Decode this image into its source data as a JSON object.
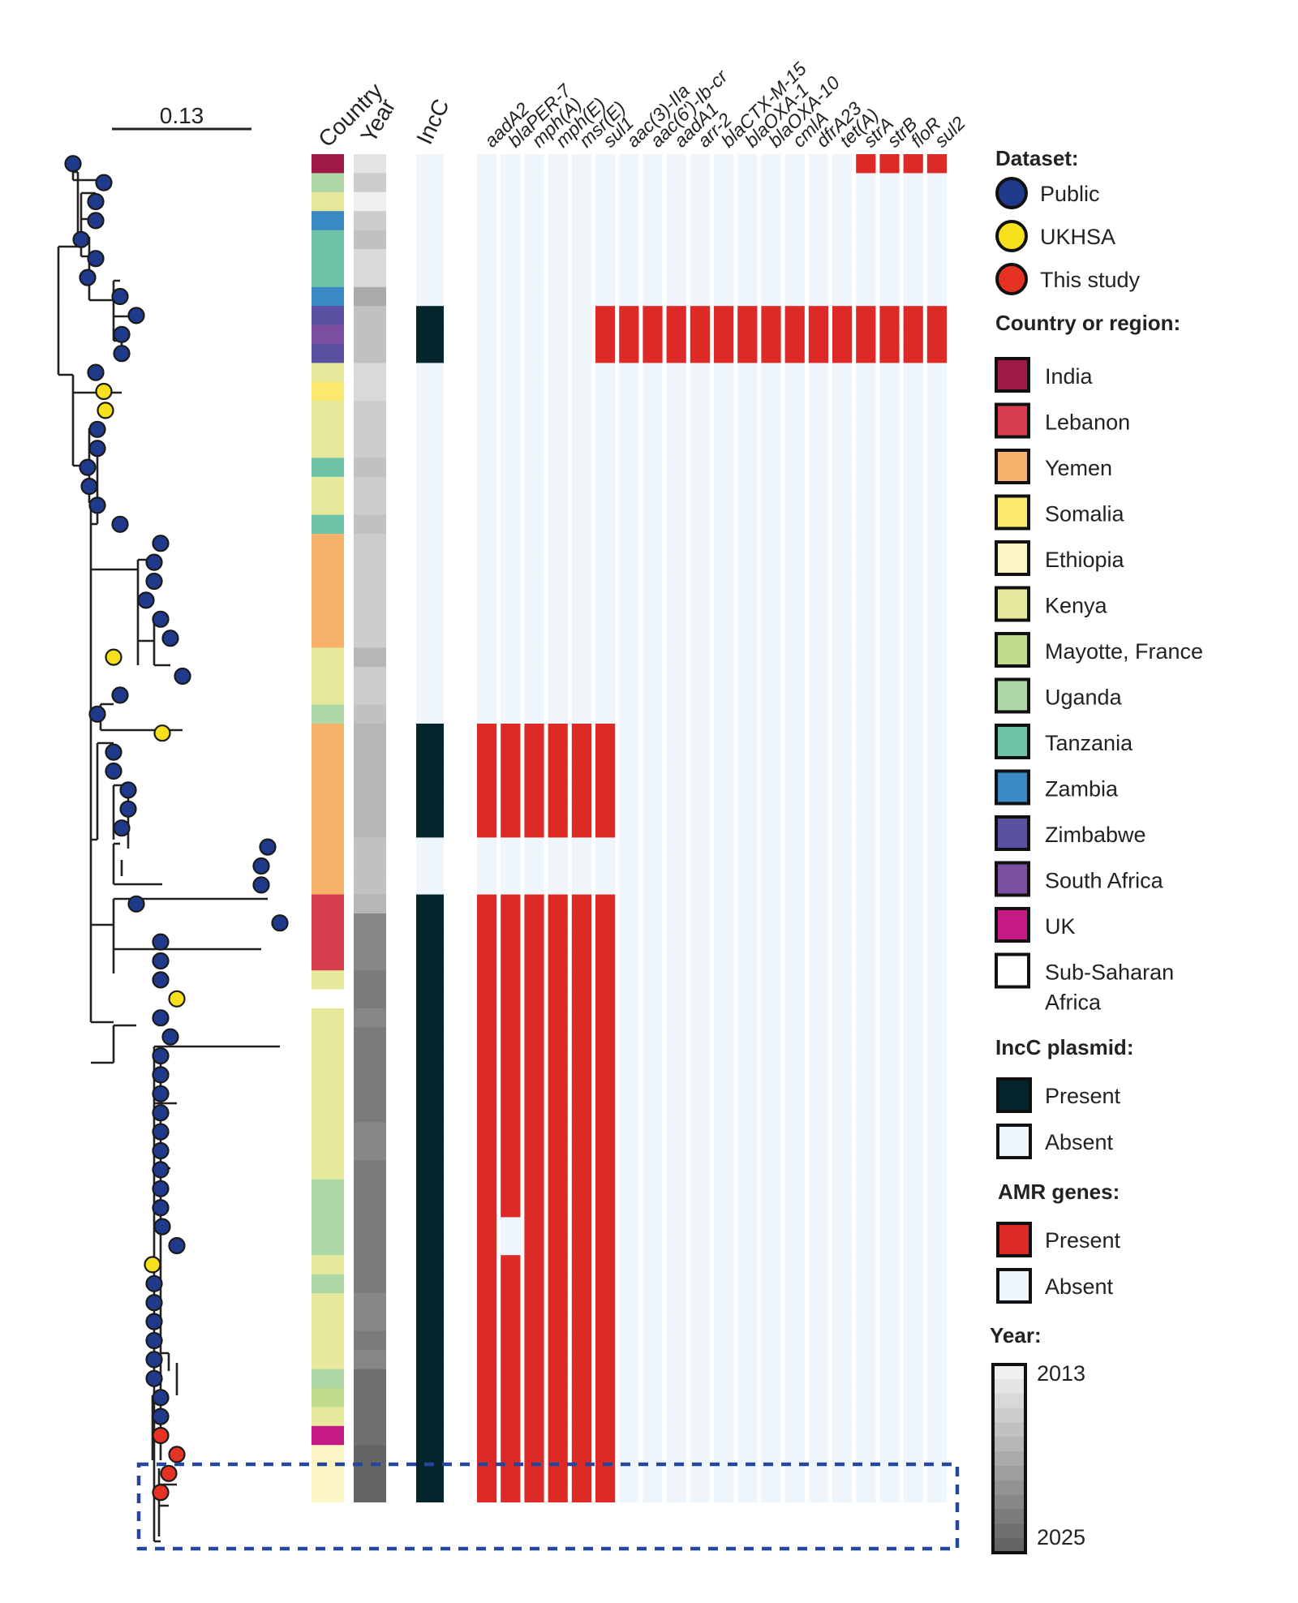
{
  "scale_bar": {
    "label": "0.13"
  },
  "columns": {
    "country": "Country",
    "year": "Year",
    "incc": "IncC",
    "genes": [
      "aadA2",
      "blaPER-7",
      "mph(A)",
      "mph(E)",
      "msr(E)",
      "sul1",
      "aac(3)-IIa",
      "aac(6')-Ib-cr",
      "aadA1",
      "arr-2",
      "blaCTX-M-15",
      "blaOXA-1",
      "blaOXA-10",
      "cmlA",
      "dfrA23",
      "tet(A)",
      "strA",
      "strB",
      "floR",
      "sul2"
    ]
  },
  "colors": {
    "public": "#1f3a8a",
    "ukhsa": "#f7e11d",
    "this_study": "#e53223",
    "present_amr": "#dd2a27",
    "absent": "#eef6fb",
    "incc_present": "#04252b",
    "highlight_box": "#25469b"
  },
  "legend": {
    "dataset": {
      "title": "Dataset:",
      "items": [
        {
          "label": "Public",
          "color": "#1f3a8a"
        },
        {
          "label": "UKHSA",
          "color": "#f7e11d"
        },
        {
          "label": "This study",
          "color": "#e53223"
        }
      ]
    },
    "country": {
      "title": "Country or region:",
      "items": [
        {
          "label": "India",
          "color": "#9e1848"
        },
        {
          "label": "Lebanon",
          "color": "#d93e4f"
        },
        {
          "label": "Yemen",
          "color": "#f8b168"
        },
        {
          "label": "Somalia",
          "color": "#fbe96f"
        },
        {
          "label": "Ethiopia",
          "color": "#fcf6c4"
        },
        {
          "label": "Kenya",
          "color": "#e6e89b"
        },
        {
          "label": "Mayotte, France",
          "color": "#bfdb8c"
        },
        {
          "label": "Uganda",
          "color": "#add7a5"
        },
        {
          "label": "Tanzania",
          "color": "#6cc3a6"
        },
        {
          "label": "Zambia",
          "color": "#3a89c4"
        },
        {
          "label": "Zimbabwe",
          "color": "#5b51a1"
        },
        {
          "label": "South Africa",
          "color": "#7c4e9f"
        },
        {
          "label": "UK",
          "color": "#c51a83"
        },
        {
          "label": "Sub-Saharan",
          "label2": "Africa",
          "color": "#ffffff"
        }
      ]
    },
    "incc": {
      "title": "IncC plasmid:",
      "items": [
        {
          "label": "Present",
          "color": "#04252b"
        },
        {
          "label": "Absent",
          "color": "#eef6fb"
        }
      ]
    },
    "amr": {
      "title": "AMR genes:",
      "items": [
        {
          "label": "Present",
          "color": "#dd2a27"
        },
        {
          "label": "Absent",
          "color": "#eef6fb"
        }
      ]
    },
    "year": {
      "title": "Year:",
      "min": "2013",
      "max": "2025"
    }
  },
  "tips": [
    {
      "dataset": "Public",
      "country": "India",
      "year": 2014,
      "incc": false,
      "amr": "strA,strB,floR,sul2"
    },
    {
      "dataset": "Public",
      "country": "Uganda",
      "year": 2016,
      "incc": false,
      "amr": ""
    },
    {
      "dataset": "Public",
      "country": "Kenya",
      "year": 2013,
      "incc": false,
      "amr": ""
    },
    {
      "dataset": "Public",
      "country": "Zambia",
      "year": 2016,
      "incc": false,
      "amr": ""
    },
    {
      "dataset": "Public",
      "country": "Tanzania",
      "year": 2017,
      "incc": false,
      "amr": ""
    },
    {
      "dataset": "Public",
      "country": "Tanzania",
      "year": 2015,
      "incc": false,
      "amr": ""
    },
    {
      "dataset": "Public",
      "country": "Tanzania",
      "year": 2015,
      "incc": false,
      "amr": ""
    },
    {
      "dataset": "Public",
      "country": "Zambia",
      "year": 2019,
      "incc": false,
      "amr": ""
    },
    {
      "dataset": "Public",
      "country": "Zimbabwe",
      "year": 2017,
      "incc": true,
      "amr": "sul1,aac(3)-IIa,...,sul2"
    },
    {
      "dataset": "Public",
      "country": "South Africa",
      "year": 2017,
      "incc": true,
      "amr": "sul1,aac(3)-IIa,...,sul2"
    },
    {
      "dataset": "Public",
      "country": "Zimbabwe",
      "year": 2017,
      "incc": true,
      "amr": "sul1,aac(3)-IIa,...,sul2"
    },
    {
      "dataset": "Public",
      "country": "Kenya",
      "year": 2015,
      "incc": false,
      "amr": ""
    },
    {
      "dataset": "UKHSA",
      "country": "Somalia",
      "year": 2015,
      "incc": false,
      "amr": ""
    },
    {
      "dataset": "UKHSA",
      "country": "Kenya",
      "year": 2016,
      "incc": false,
      "amr": ""
    },
    {
      "dataset": "Public",
      "country": "Kenya",
      "year": 2016,
      "incc": false,
      "amr": ""
    },
    {
      "dataset": "Public",
      "country": "Kenya",
      "year": 2016,
      "incc": false,
      "amr": ""
    },
    {
      "dataset": "Public",
      "country": "Tanzania",
      "year": 2017,
      "incc": false,
      "amr": ""
    },
    {
      "dataset": "Public",
      "country": "Kenya",
      "year": 2016,
      "incc": false,
      "amr": ""
    },
    {
      "dataset": "Public",
      "country": "Kenya",
      "year": 2016,
      "incc": false,
      "amr": ""
    },
    {
      "dataset": "Public",
      "country": "Tanzania",
      "year": 2017,
      "incc": false,
      "amr": ""
    },
    {
      "dataset": "Public",
      "country": "Yemen",
      "year": 2016,
      "incc": false,
      "amr": ""
    },
    {
      "dataset": "Public",
      "country": "Yemen",
      "year": 2016,
      "incc": false,
      "amr": ""
    },
    {
      "dataset": "Public",
      "country": "Yemen",
      "year": 2016,
      "incc": false,
      "amr": ""
    },
    {
      "dataset": "Public",
      "country": "Yemen",
      "year": 2016,
      "incc": false,
      "amr": ""
    },
    {
      "dataset": "Public",
      "country": "Yemen",
      "year": 2016,
      "incc": false,
      "amr": ""
    },
    {
      "dataset": "Public",
      "country": "Yemen",
      "year": 2016,
      "incc": false,
      "amr": ""
    },
    {
      "dataset": "UKHSA",
      "country": "Kenya",
      "year": 2018,
      "incc": false,
      "amr": ""
    },
    {
      "dataset": "Public",
      "country": "Kenya",
      "year": 2016,
      "incc": false,
      "amr": ""
    },
    {
      "dataset": "Public",
      "country": "Kenya",
      "year": 2016,
      "incc": false,
      "amr": ""
    },
    {
      "dataset": "Public",
      "country": "Uganda",
      "year": 2017,
      "incc": false,
      "amr": ""
    },
    {
      "dataset": "UKHSA",
      "country": "Yemen",
      "year": 2018,
      "incc": true,
      "amr": "aadA2..sul1"
    },
    {
      "dataset": "Public",
      "country": "Yemen",
      "year": 2018,
      "incc": true,
      "amr": "aadA2..sul1"
    },
    {
      "dataset": "Public",
      "country": "Yemen",
      "year": 2018,
      "incc": true,
      "amr": "aadA2..sul1"
    },
    {
      "dataset": "Public",
      "country": "Yemen",
      "year": 2018,
      "incc": true,
      "amr": "aadA2..sul1"
    },
    {
      "dataset": "Public",
      "country": "Yemen",
      "year": 2018,
      "incc": true,
      "amr": "aadA2..sul1"
    },
    {
      "dataset": "Public",
      "country": "Yemen",
      "year": 2018,
      "incc": true,
      "amr": "aadA2..sul1"
    },
    {
      "dataset": "Public",
      "country": "Yemen",
      "year": 2017,
      "incc": false,
      "amr": ""
    },
    {
      "dataset": "Public",
      "country": "Yemen",
      "year": 2017,
      "incc": false,
      "amr": ""
    },
    {
      "dataset": "Public",
      "country": "Yemen",
      "year": 2017,
      "incc": false,
      "amr": ""
    },
    {
      "dataset": "Public",
      "country": "Lebanon",
      "year": 2018,
      "incc": true,
      "amr": "aadA2..sul1"
    },
    {
      "dataset": "Public",
      "country": "Lebanon",
      "year": 2022,
      "incc": true,
      "amr": "aadA2..sul1"
    },
    {
      "dataset": "Public",
      "country": "Lebanon",
      "year": 2022,
      "incc": true,
      "amr": "aadA2..sul1"
    },
    {
      "dataset": "Public",
      "country": "Lebanon",
      "year": 2022,
      "incc": true,
      "amr": "aadA2..sul1"
    },
    {
      "dataset": "Public",
      "country": "Kenya",
      "year": 2023,
      "incc": true,
      "amr": "aadA2..sul1"
    },
    {
      "dataset": "UKHSA",
      "country": "Sub-Saharan Africa",
      "year": 2023,
      "incc": true,
      "amr": "aadA2..sul1"
    },
    {
      "dataset": "Public",
      "country": "Kenya",
      "year": 2022,
      "incc": true,
      "amr": "aadA2..sul1"
    },
    {
      "dataset": "Public",
      "country": "Kenya",
      "year": 2023,
      "incc": true,
      "amr": "aadA2..sul1"
    },
    {
      "dataset": "Public",
      "country": "Kenya",
      "year": 2023,
      "incc": true,
      "amr": "aadA2..sul1"
    },
    {
      "dataset": "Public",
      "country": "Kenya",
      "year": 2023,
      "incc": true,
      "amr": "aadA2..sul1"
    },
    {
      "dataset": "Public",
      "country": "Kenya",
      "year": 2023,
      "incc": true,
      "amr": "aadA2..sul1"
    },
    {
      "dataset": "Public",
      "country": "Kenya",
      "year": 2023,
      "incc": true,
      "amr": "aadA2..sul1"
    },
    {
      "dataset": "Public",
      "country": "Kenya",
      "year": 2022,
      "incc": true,
      "amr": "aadA2..sul1"
    },
    {
      "dataset": "Public",
      "country": "Kenya",
      "year": 2022,
      "incc": true,
      "amr": "aadA2..sul1"
    },
    {
      "dataset": "Public",
      "country": "Kenya",
      "year": 2023,
      "incc": true,
      "amr": "aadA2..sul1"
    },
    {
      "dataset": "Public",
      "country": "Uganda",
      "year": 2023,
      "incc": true,
      "amr": "aadA2..sul1"
    },
    {
      "dataset": "Public",
      "country": "Uganda",
      "year": 2023,
      "incc": true,
      "amr": "aadA2..sul1"
    },
    {
      "dataset": "Public",
      "country": "Uganda",
      "year": 2023,
      "incc": true,
      "amr": "aadA2,mph(A)..sul1"
    },
    {
      "dataset": "Public",
      "country": "Uganda",
      "year": 2023,
      "incc": true,
      "amr": "aadA2,mph(A)..sul1"
    },
    {
      "dataset": "UKHSA",
      "country": "Kenya",
      "year": 2023,
      "incc": true,
      "amr": "aadA2..sul1"
    },
    {
      "dataset": "Public",
      "country": "Uganda",
      "year": 2023,
      "incc": true,
      "amr": "aadA2..sul1"
    },
    {
      "dataset": "Public",
      "country": "Kenya",
      "year": 2022,
      "incc": true,
      "amr": "aadA2..sul1"
    },
    {
      "dataset": "Public",
      "country": "Kenya",
      "year": 2022,
      "incc": true,
      "amr": "aadA2..sul1"
    },
    {
      "dataset": "Public",
      "country": "Kenya",
      "year": 2023,
      "incc": true,
      "amr": "aadA2..sul1"
    },
    {
      "dataset": "Public",
      "country": "Kenya",
      "year": 2022,
      "incc": true,
      "amr": "aadA2..sul1"
    },
    {
      "dataset": "Public",
      "country": "Uganda",
      "year": 2024,
      "incc": true,
      "amr": "aadA2..sul1"
    },
    {
      "dataset": "Public",
      "country": "Mayotte, France",
      "year": 2024,
      "incc": true,
      "amr": "aadA2..sul1"
    },
    {
      "dataset": "Public",
      "country": "Kenya",
      "year": 2024,
      "incc": true,
      "amr": "aadA2..sul1"
    },
    {
      "dataset": "This study",
      "country": "UK",
      "year": 2024,
      "incc": true,
      "amr": "aadA2..sul1"
    },
    {
      "dataset": "This study",
      "country": "Ethiopia",
      "year": 2025,
      "incc": true,
      "amr": "aadA2..sul1"
    },
    {
      "dataset": "This study",
      "country": "Ethiopia",
      "year": 2025,
      "incc": true,
      "amr": "aadA2..sul1"
    },
    {
      "dataset": "This study",
      "country": "Ethiopia",
      "year": 2025,
      "incc": true,
      "amr": "aadA2..sul1"
    }
  ]
}
